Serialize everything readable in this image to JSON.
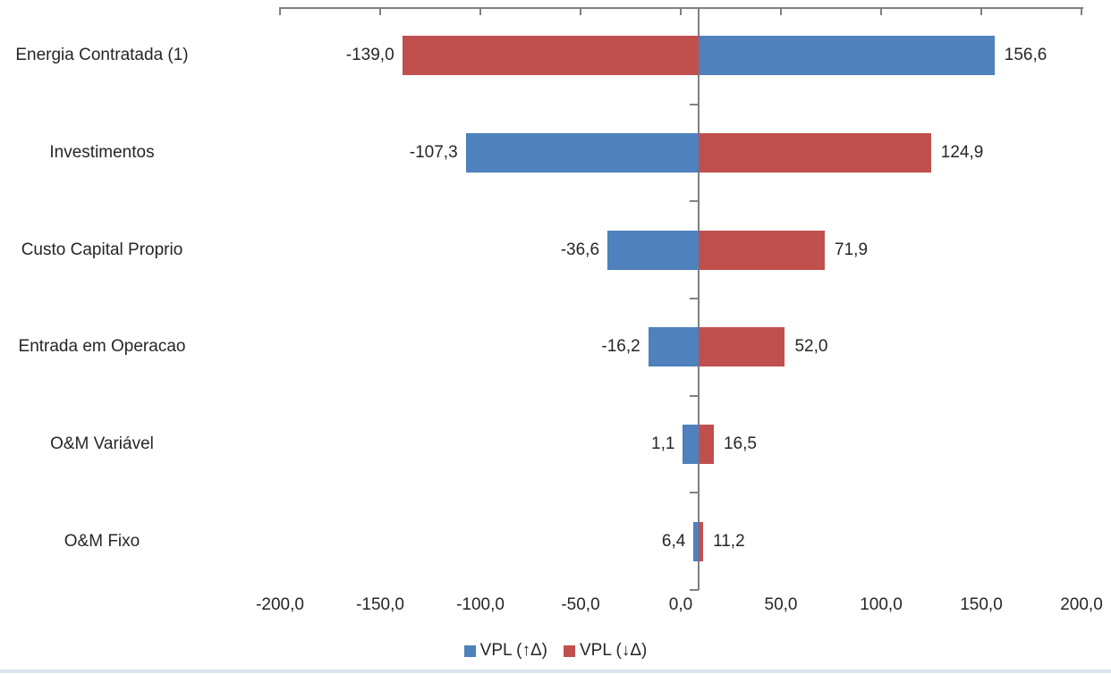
{
  "chart_data": {
    "type": "bar",
    "orientation": "horizontal",
    "variant": "tornado",
    "title": "",
    "categories": [
      "Energia Contratada (1)",
      "Investimentos",
      "Custo Capital Proprio",
      "Entrada em Operacao",
      "O&M Variável",
      "O&M Fixo"
    ],
    "series": [
      {
        "name": "VPL (↑Δ)",
        "color": "#4F81BD",
        "values": [
          156.6,
          -107.3,
          -36.6,
          -16.2,
          1.1,
          6.4
        ],
        "value_labels": [
          "156,6",
          "-107,3",
          "-36,6",
          "-16,2",
          "1,1",
          "6,4"
        ]
      },
      {
        "name": "VPL (↓Δ)",
        "color": "#C0504D",
        "values": [
          -139.0,
          124.9,
          71.9,
          52.0,
          16.5,
          11.2
        ],
        "value_labels": [
          "-139,0",
          "124,9",
          "71,9",
          "52,0",
          "16,5",
          "11,2"
        ]
      }
    ],
    "bar_base": 8.8,
    "xlim": [
      -200,
      200
    ],
    "x_ticks": [
      -200,
      -150,
      -100,
      -50,
      0,
      50,
      100,
      150,
      200
    ],
    "x_tick_labels": [
      "-200,0",
      "-150,0",
      "-100,0",
      "-50,0",
      "0,0",
      "50,0",
      "100,0",
      "150,0",
      "200,0"
    ],
    "grid": false,
    "legend_position": "bottom"
  },
  "colors": {
    "axis": "#808080",
    "text": "#262626",
    "vpl_up": "#4F81BD",
    "vpl_down": "#C0504D"
  }
}
